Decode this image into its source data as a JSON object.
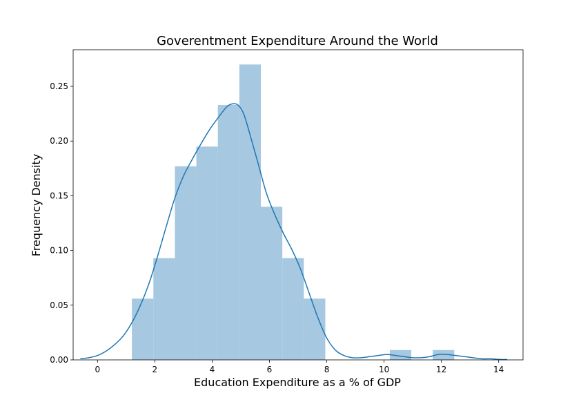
{
  "chart_data": {
    "type": "bar",
    "title": "Goverentment Expenditure Around the World",
    "xlabel": "Education Expenditure as a % of GDP",
    "ylabel": "Frequency Density",
    "xlim": [
      -0.85,
      14.85
    ],
    "ylim": [
      0,
      0.2835
    ],
    "grid": false,
    "xticks": [
      0,
      2,
      4,
      6,
      8,
      10,
      12,
      14
    ],
    "xtick_labels": [
      "0",
      "2",
      "4",
      "6",
      "8",
      "10",
      "12",
      "14"
    ],
    "yticks": [
      0.0,
      0.05,
      0.1,
      0.15,
      0.2,
      0.25
    ],
    "ytick_labels": [
      "0.00",
      "0.05",
      "0.10",
      "0.15",
      "0.20",
      "0.25"
    ],
    "colors": {
      "bars": "#a6c8e0",
      "kde": "#1f77b4"
    },
    "histogram": {
      "bin_edges": [
        1.2,
        1.95,
        2.7,
        3.45,
        4.2,
        4.95,
        5.7,
        6.45,
        7.2,
        7.95,
        8.7,
        9.45,
        10.2,
        10.95,
        11.7,
        12.45
      ],
      "values": [
        0.056,
        0.093,
        0.177,
        0.195,
        0.233,
        0.27,
        0.14,
        0.093,
        0.056,
        0.0,
        0.0,
        0.0,
        0.009,
        0.0,
        0.009
      ]
    },
    "kde": {
      "x": [
        -0.6,
        -0.3,
        0.0,
        0.3,
        0.6,
        0.9,
        1.2,
        1.5,
        1.8,
        2.1,
        2.4,
        2.7,
        3.0,
        3.3,
        3.6,
        3.9,
        4.2,
        4.5,
        4.7,
        4.9,
        5.1,
        5.3,
        5.6,
        5.9,
        6.2,
        6.5,
        6.8,
        7.1,
        7.4,
        7.7,
        8.0,
        8.3,
        8.6,
        8.9,
        9.2,
        9.5,
        9.8,
        10.1,
        10.4,
        10.7,
        11.0,
        11.3,
        11.6,
        11.9,
        12.2,
        12.5,
        12.8,
        13.1,
        13.4,
        13.7,
        14.0,
        14.3
      ],
      "y": [
        0.001,
        0.002,
        0.004,
        0.008,
        0.014,
        0.022,
        0.034,
        0.05,
        0.07,
        0.095,
        0.122,
        0.148,
        0.168,
        0.183,
        0.197,
        0.21,
        0.221,
        0.231,
        0.234,
        0.233,
        0.225,
        0.208,
        0.18,
        0.152,
        0.132,
        0.115,
        0.1,
        0.082,
        0.06,
        0.038,
        0.02,
        0.009,
        0.004,
        0.002,
        0.002,
        0.003,
        0.004,
        0.005,
        0.004,
        0.003,
        0.002,
        0.002,
        0.003,
        0.005,
        0.005,
        0.004,
        0.003,
        0.002,
        0.001,
        0.001,
        0.0005,
        0.0003
      ]
    }
  }
}
